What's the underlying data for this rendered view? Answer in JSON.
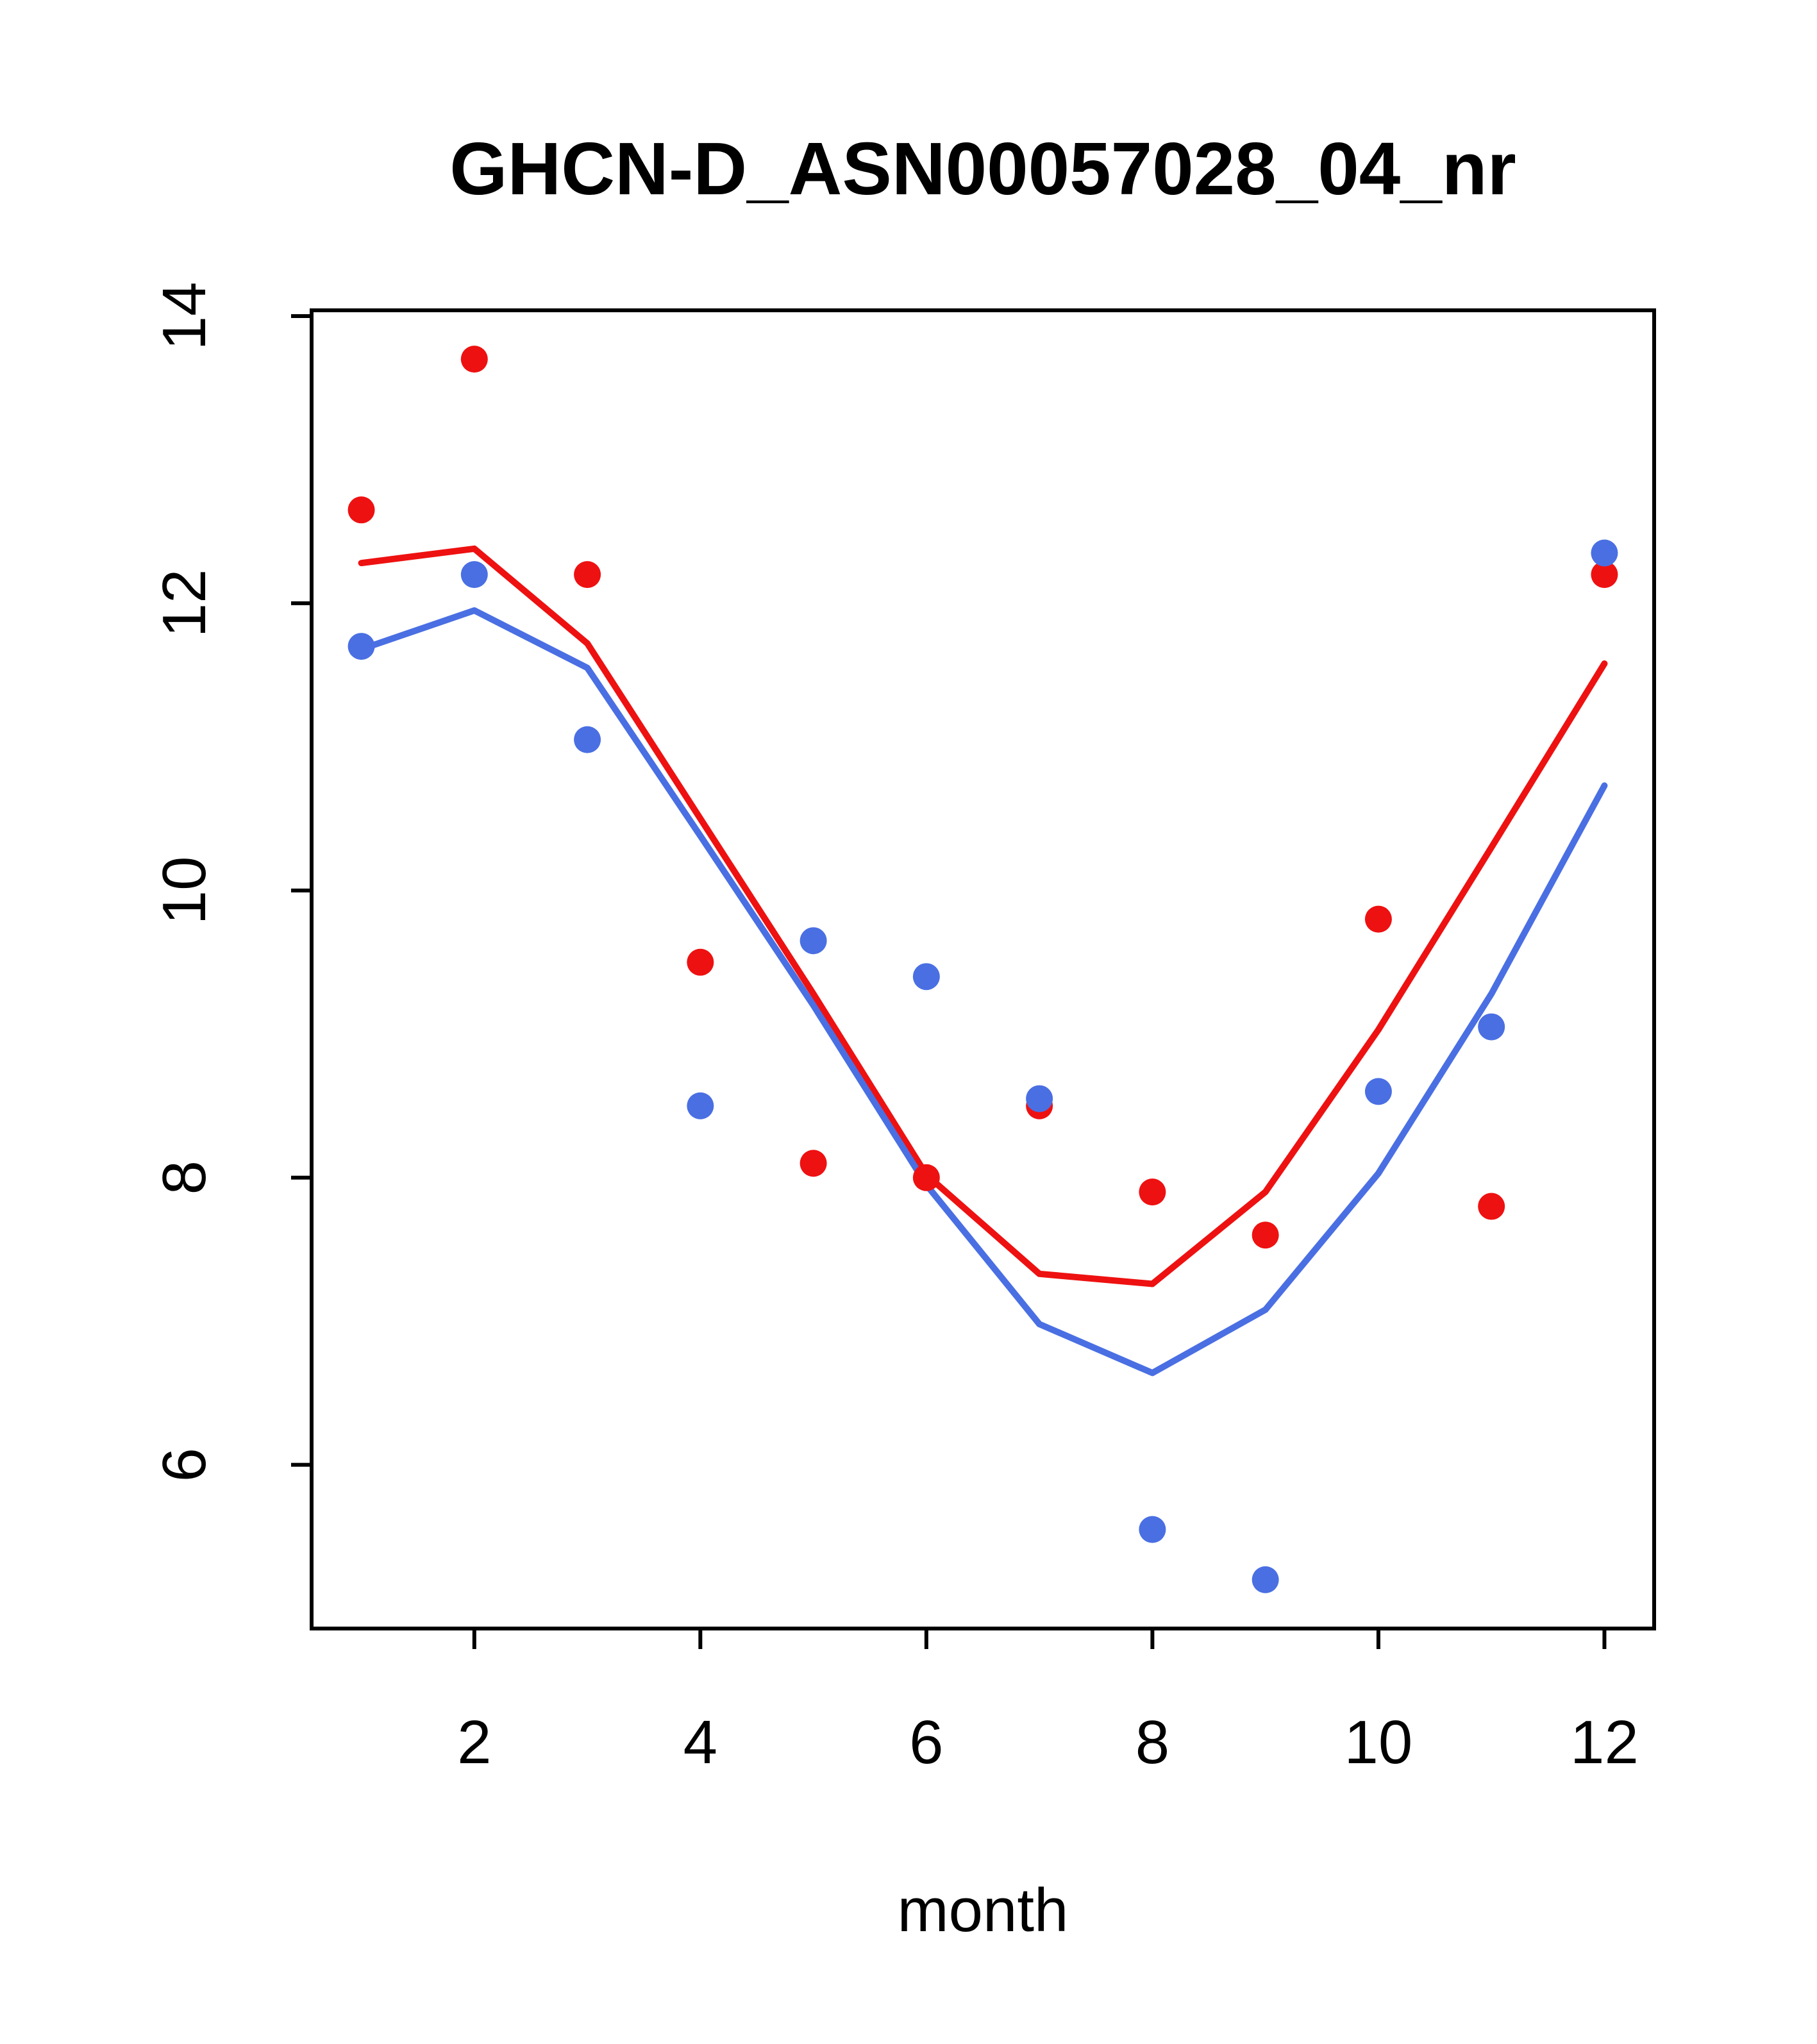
{
  "chart_data": {
    "type": "scatter",
    "title": "GHCN-D_ASN00057028_04_nr",
    "xlabel": "month",
    "ylabel": "",
    "x": [
      1,
      2,
      3,
      4,
      5,
      6,
      7,
      8,
      9,
      10,
      11,
      12
    ],
    "xticks": [
      2,
      4,
      6,
      8,
      10,
      12
    ],
    "yticks": [
      6,
      8,
      10,
      12,
      14
    ],
    "xlim": [
      0.56,
      12.44
    ],
    "ylim": [
      4.86,
      14.04
    ],
    "grid": false,
    "legend": "none",
    "axis_color": "#000000",
    "background": "#ffffff",
    "series": [
      {
        "name": "red-points",
        "kind": "points",
        "color": "#ee1111",
        "values": [
          12.65,
          13.7,
          12.2,
          9.5,
          8.1,
          8.0,
          8.5,
          7.9,
          7.6,
          9.8,
          7.8,
          12.2
        ]
      },
      {
        "name": "blue-points",
        "kind": "points",
        "color": "#4a6fe3",
        "values": [
          11.7,
          12.2,
          11.05,
          8.5,
          9.65,
          9.4,
          8.55,
          5.55,
          5.2,
          8.6,
          9.05,
          12.35
        ]
      },
      {
        "name": "red-line",
        "kind": "line",
        "color": "#ee1111",
        "values": [
          12.28,
          12.38,
          11.72,
          10.5,
          9.28,
          8.02,
          7.33,
          7.26,
          7.9,
          9.03,
          10.3,
          11.58
        ]
      },
      {
        "name": "blue-line",
        "kind": "line",
        "color": "#4a6fe3",
        "values": [
          11.68,
          11.95,
          11.55,
          10.38,
          9.2,
          7.95,
          6.98,
          6.64,
          7.08,
          8.03,
          9.28,
          10.73
        ]
      }
    ]
  }
}
